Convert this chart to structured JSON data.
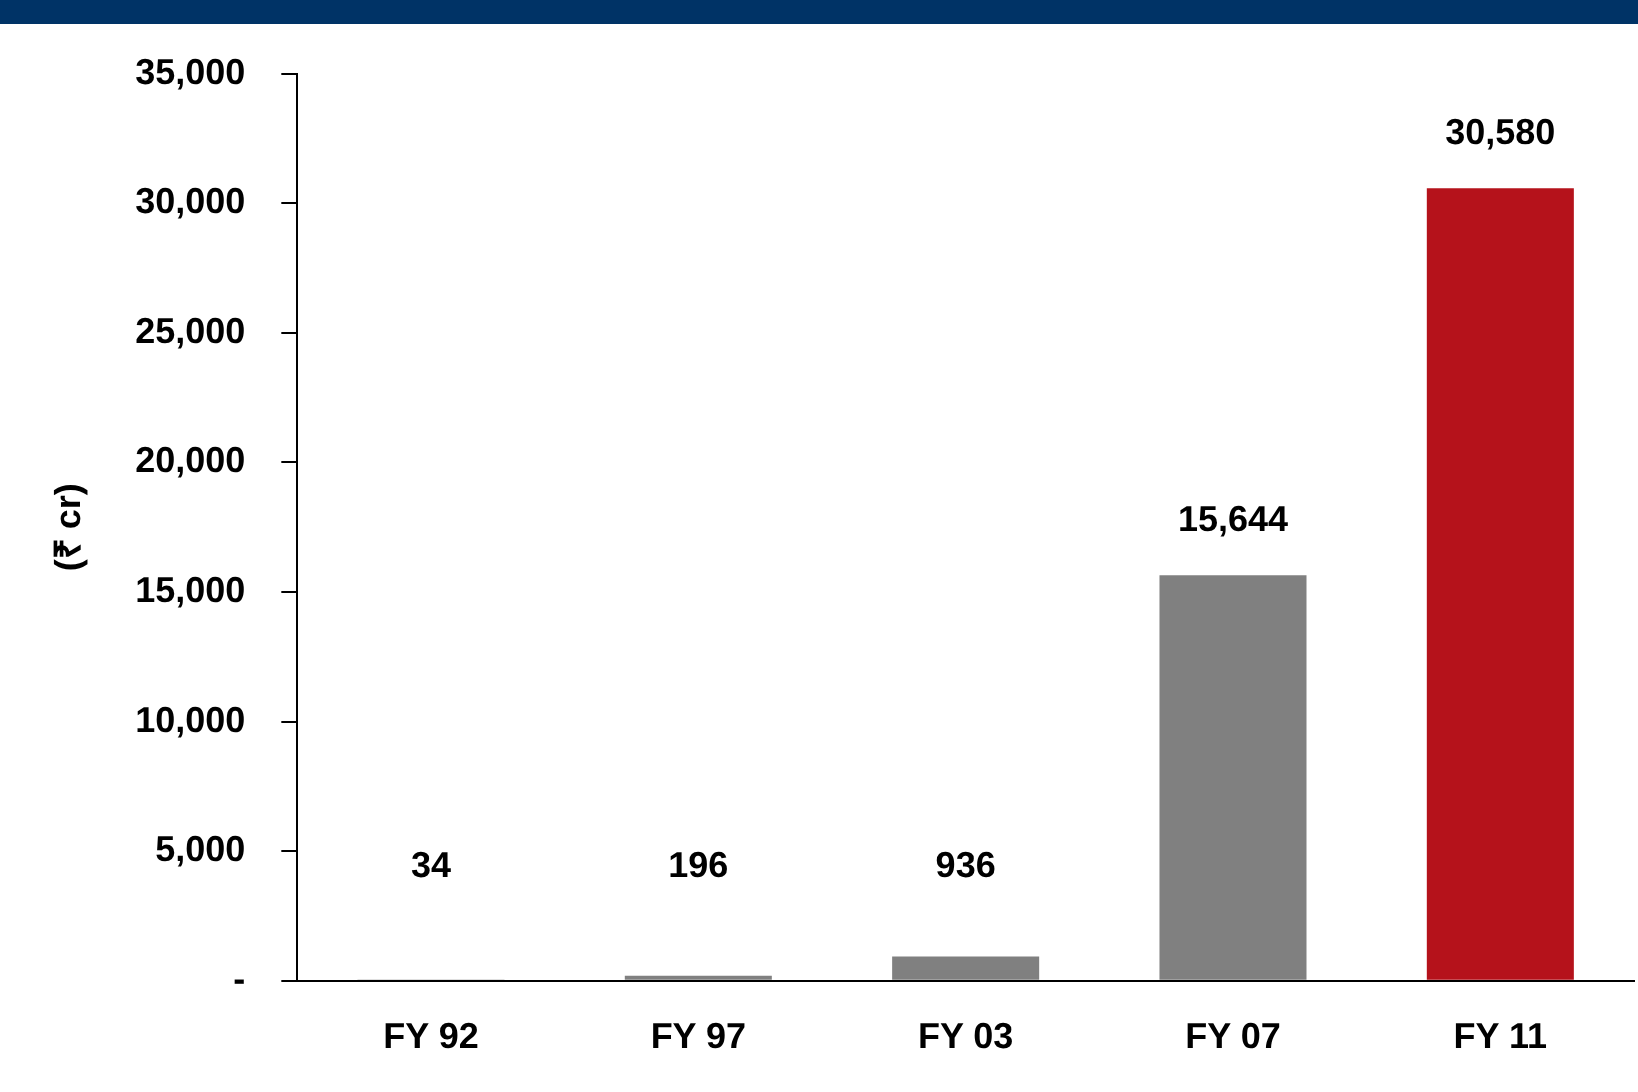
{
  "chart_data": {
    "type": "bar",
    "ylabel": "(₹ cr)",
    "categories": [
      "FY 92",
      "FY 97",
      "FY 03",
      "FY 07",
      "FY 11"
    ],
    "values": [
      34,
      196,
      936,
      15644,
      30580
    ],
    "colors": [
      "#808080",
      "#808080",
      "#808080",
      "#808080",
      "#b5121b"
    ],
    "value_labels": [
      "34",
      "196",
      "936",
      "15,644",
      "30,580"
    ],
    "ylim": [
      0,
      35000
    ],
    "yticks": [
      {
        "value": 0,
        "label": "-"
      },
      {
        "value": 5000,
        "label": "5,000"
      },
      {
        "value": 10000,
        "label": "10,000"
      },
      {
        "value": 15000,
        "label": "15,000"
      },
      {
        "value": 20000,
        "label": "20,000"
      },
      {
        "value": 25000,
        "label": "25,000"
      },
      {
        "value": 30000,
        "label": "30,000"
      },
      {
        "value": 35000,
        "label": "35,000"
      }
    ],
    "grid": false,
    "legend": false
  }
}
